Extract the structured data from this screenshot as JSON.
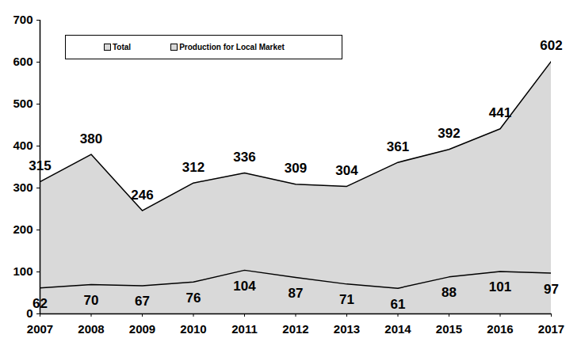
{
  "chart_data": {
    "type": "area",
    "x": [
      2007,
      2008,
      2009,
      2010,
      2011,
      2012,
      2013,
      2014,
      2015,
      2016,
      2017
    ],
    "series": [
      {
        "name": "Total",
        "color": "#d9d9d9",
        "values": [
          315,
          380,
          246,
          312,
          336,
          309,
          304,
          361,
          392,
          441,
          602
        ]
      },
      {
        "name": "Production for Local Market",
        "color": "#d9d9d9",
        "values": [
          62,
          70,
          67,
          76,
          104,
          87,
          71,
          61,
          88,
          101,
          97
        ]
      }
    ],
    "xlim": [
      2007,
      2017
    ],
    "xticks": [
      2007,
      2008,
      2009,
      2010,
      2011,
      2012,
      2013,
      2014,
      2015,
      2016,
      2017
    ],
    "ylim": [
      0,
      700
    ],
    "yticks": [
      0,
      100,
      200,
      300,
      400,
      500,
      600,
      700
    ],
    "grid": false,
    "legend": "top-left",
    "data_labels": true
  }
}
